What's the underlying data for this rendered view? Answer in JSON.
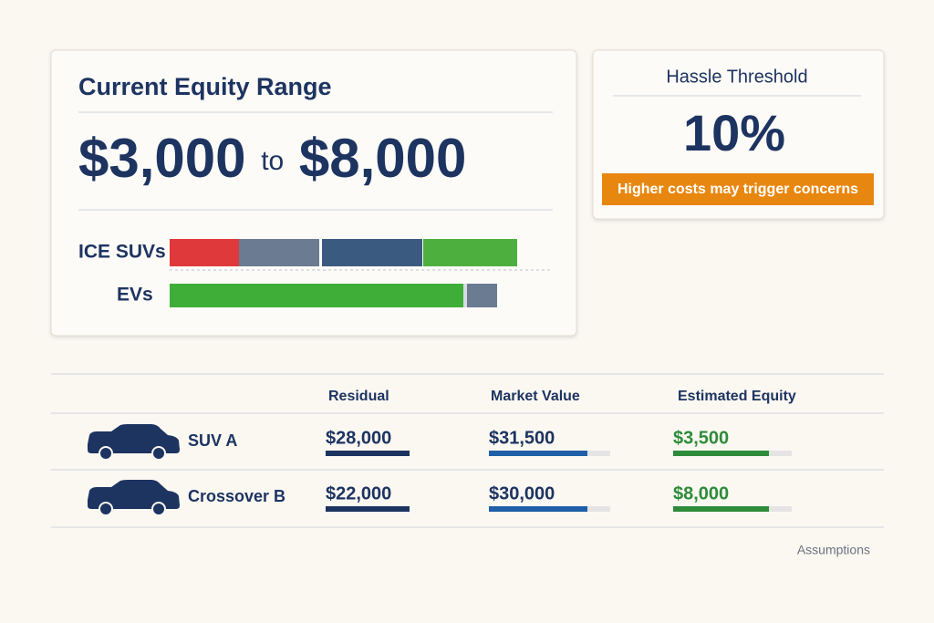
{
  "equity_card": {
    "title": "Current Equity Range",
    "low": "$3,000",
    "connector": "to",
    "high": "$8,000",
    "rows": [
      "ICE SUVs",
      "EVs"
    ]
  },
  "threshold_card": {
    "title": "Hassle Threshold",
    "value": "10%",
    "note": "Higher costs may trigger concerns"
  },
  "table": {
    "headers": [
      "Residual",
      "Market Value",
      "Estimated Equity"
    ],
    "rows": [
      [
        "SUV A",
        "$28,000",
        "$31,500",
        "$3,500"
      ],
      [
        "Crossover B",
        "$22,000",
        "$30,000",
        "$8,000"
      ]
    ]
  },
  "footer": {
    "link": "Assumptions"
  }
}
